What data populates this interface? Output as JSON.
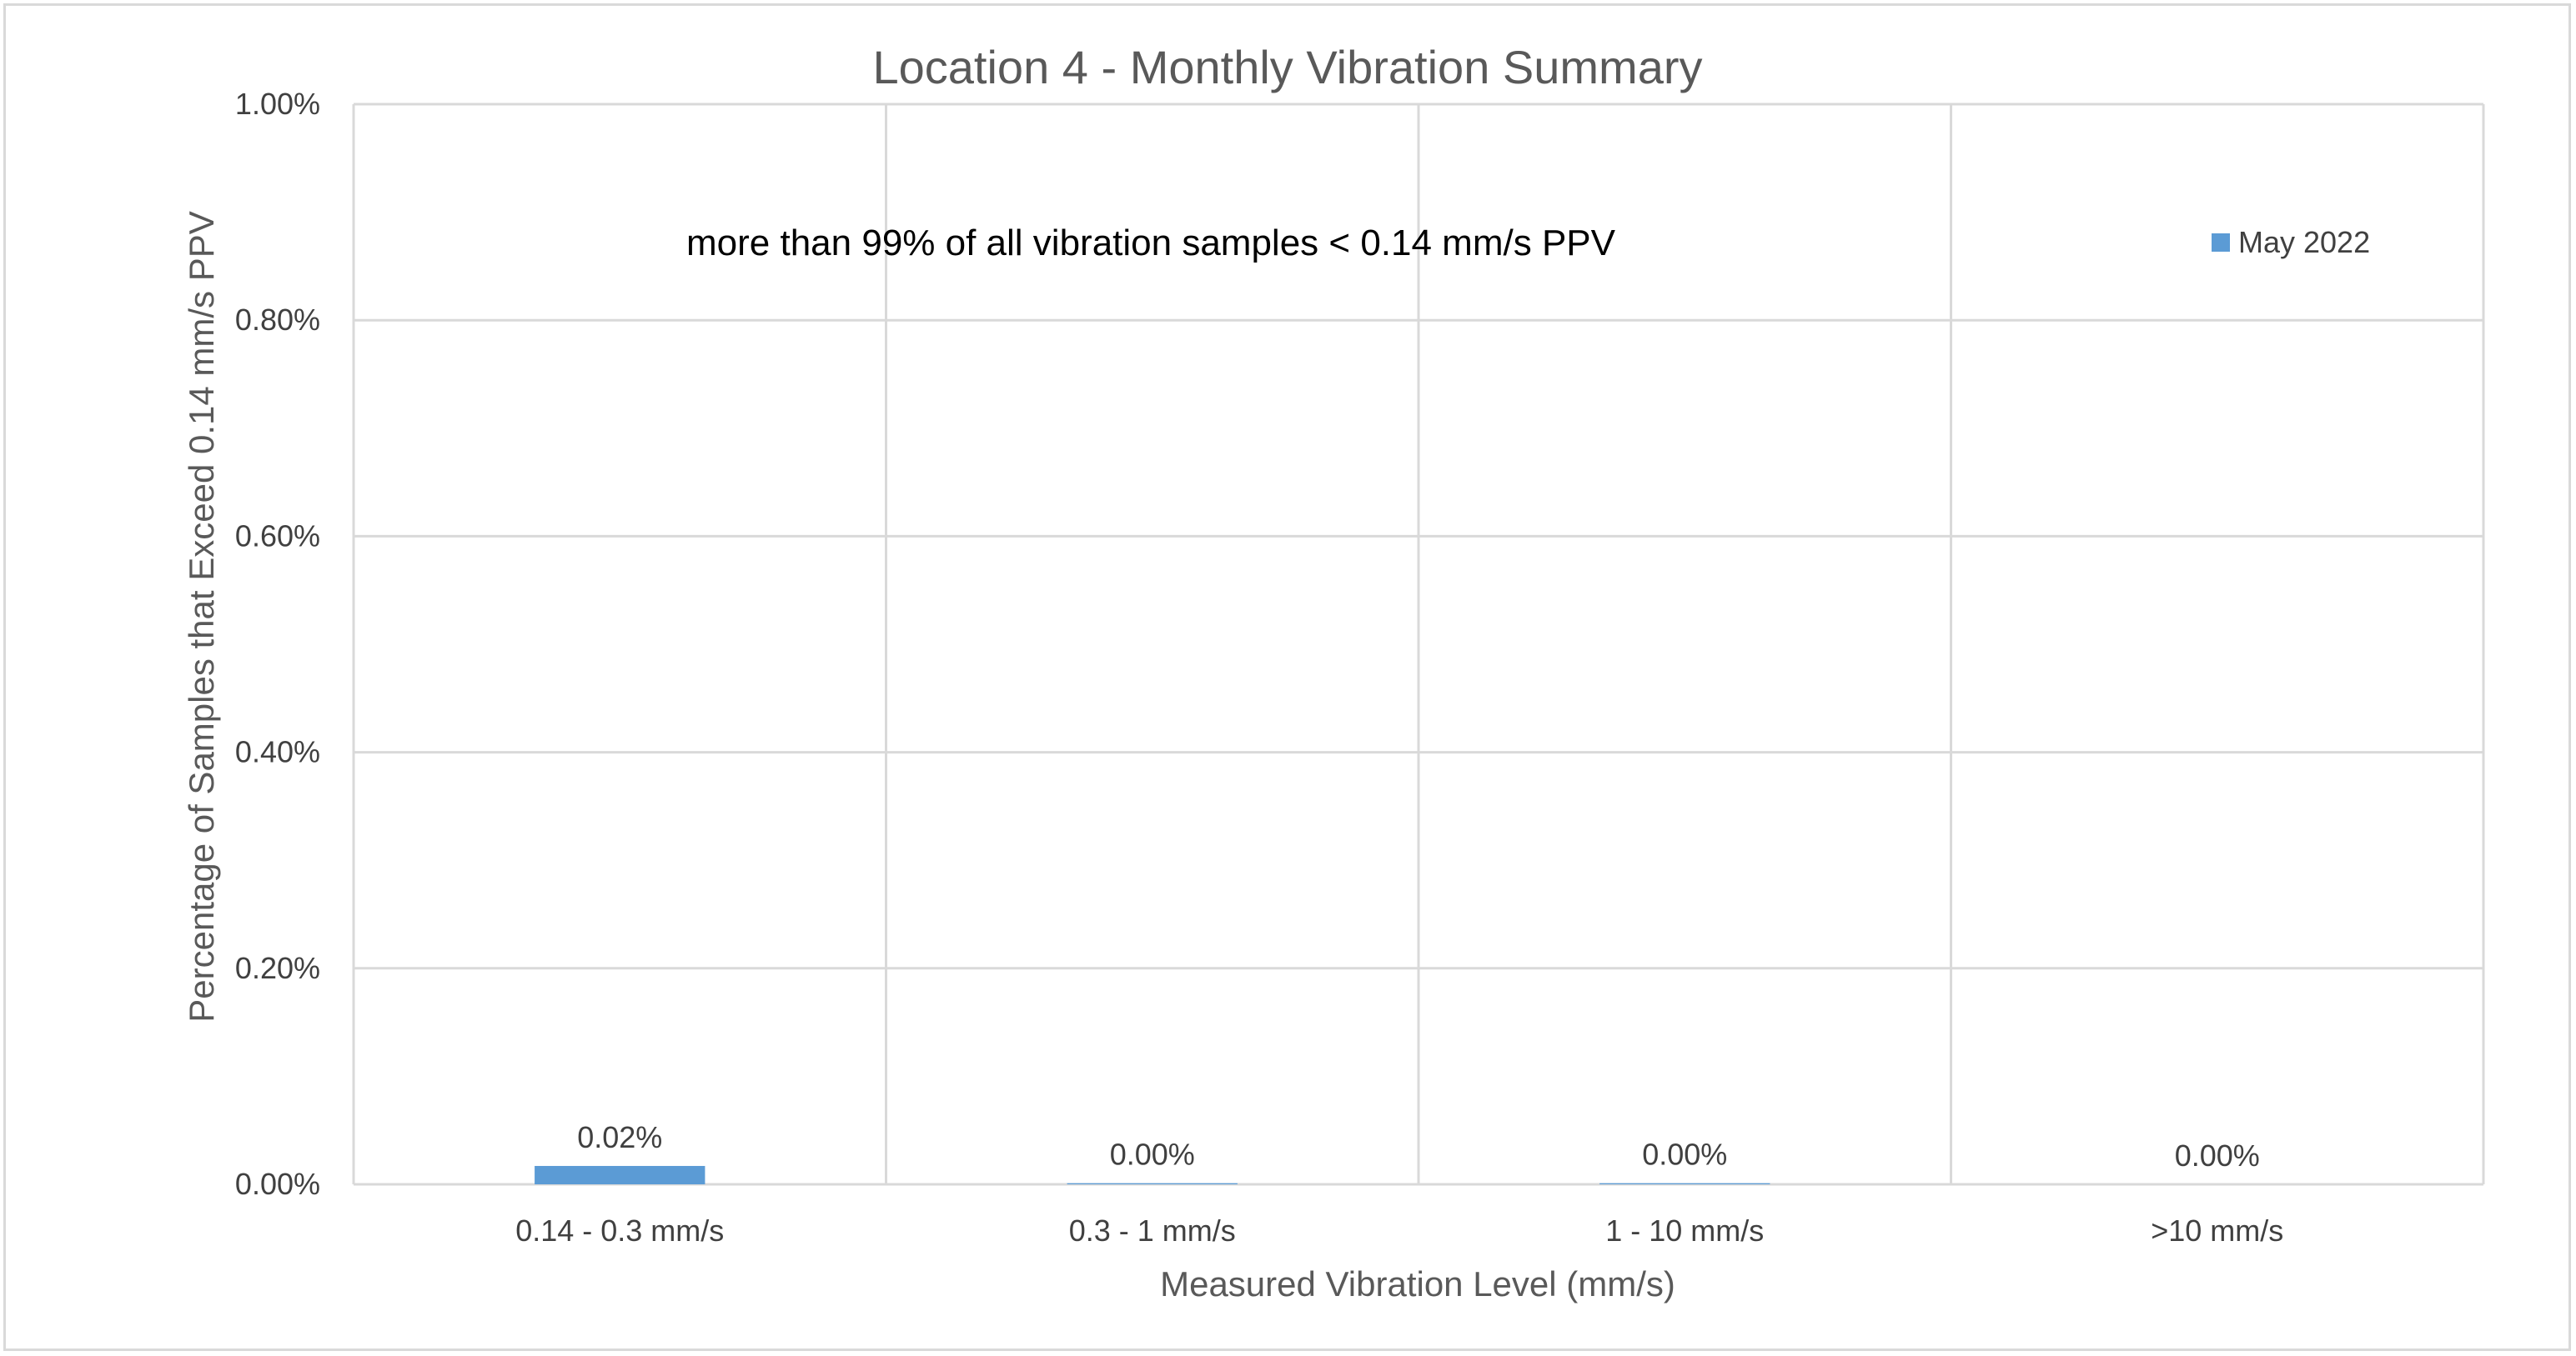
{
  "chart_data": {
    "type": "bar",
    "title": "Location 4 - Monthly Vibration Summary",
    "xlabel": "Measured Vibration Level (mm/s)",
    "ylabel": "Percentage of Samples that Exceed 0.14 mm/s PPV",
    "categories": [
      "0.14 - 0.3 mm/s",
      "0.3 - 1 mm/s",
      "1 - 10 mm/s",
      ">10 mm/s"
    ],
    "series": [
      {
        "name": "May 2022",
        "values": [
          0.017,
          0.001,
          0.001,
          0.0
        ],
        "labels": [
          "0.02%",
          "0.00%",
          "0.00%",
          "0.00%"
        ],
        "color": "#5b9bd5"
      }
    ],
    "ylim": [
      0,
      1.0
    ],
    "yticks": [
      0,
      0.2,
      0.4,
      0.6,
      0.8,
      1.0
    ],
    "ytick_labels": [
      "0.00%",
      "0.20%",
      "0.40%",
      "0.60%",
      "0.80%",
      "1.00%"
    ],
    "grid": true,
    "legend_position": "top-right",
    "annotation": "more than 99% of all vibration samples < 0.14 mm/s PPV"
  },
  "colors": {
    "bar": "#5b9bd5",
    "grid": "#d9d9d9",
    "frame": "#d9d9d9"
  }
}
